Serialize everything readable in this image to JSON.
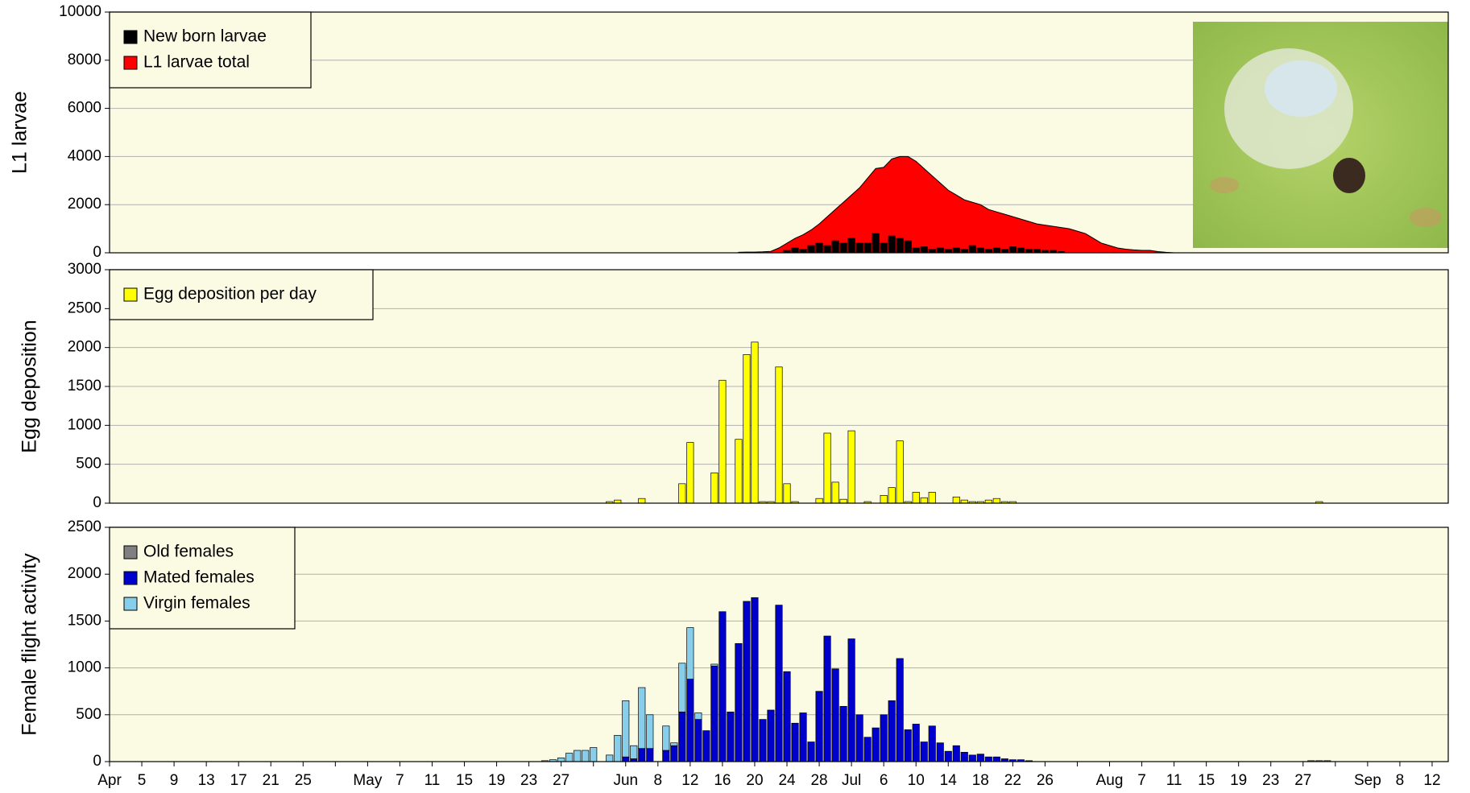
{
  "chart_data": [
    {
      "type": "area",
      "y_label": "L1 larvae",
      "xlim": [
        0,
        166
      ],
      "ylim": [
        0,
        10000
      ],
      "yticks": [
        0,
        2000,
        4000,
        6000,
        8000,
        10000
      ],
      "grid": true,
      "legend": "top-left",
      "x": [
        78,
        79,
        80,
        81,
        82,
        83,
        84,
        85,
        86,
        87,
        88,
        89,
        90,
        91,
        92,
        93,
        94,
        95,
        96,
        97,
        98,
        99,
        100,
        101,
        102,
        103,
        104,
        105,
        106,
        107,
        108,
        109,
        110,
        111,
        112,
        113,
        114,
        115,
        116,
        117,
        118,
        119,
        120,
        121,
        122,
        123,
        124,
        125,
        126,
        127,
        128,
        129,
        130,
        131,
        132
      ],
      "series": [
        {
          "name": "New born larvae",
          "color": "#000000",
          "type": "bar",
          "values": [
            0,
            0,
            0,
            0,
            0,
            0,
            100,
            200,
            150,
            300,
            400,
            300,
            500,
            400,
            600,
            400,
            400,
            800,
            400,
            700,
            600,
            500,
            200,
            250,
            150,
            200,
            150,
            200,
            150,
            300,
            200,
            150,
            200,
            150,
            250,
            200,
            150,
            150,
            100,
            100,
            50,
            0,
            0,
            0,
            0,
            0,
            0,
            0,
            0,
            0,
            0,
            0,
            0,
            0,
            0
          ]
        },
        {
          "name": "L1 larvae total",
          "color": "#ff0000",
          "type": "area",
          "values": [
            20,
            30,
            30,
            40,
            60,
            200,
            400,
            600,
            750,
            950,
            1200,
            1500,
            1800,
            2100,
            2400,
            2700,
            3100,
            3500,
            3550,
            3900,
            4000,
            4000,
            3800,
            3500,
            3200,
            2900,
            2600,
            2400,
            2200,
            2100,
            2000,
            1800,
            1700,
            1600,
            1500,
            1400,
            1300,
            1200,
            1150,
            1100,
            1050,
            1000,
            900,
            800,
            600,
            400,
            300,
            200,
            150,
            120,
            100,
            100,
            50,
            20,
            0
          ]
        }
      ]
    },
    {
      "type": "bar",
      "y_label": "Egg deposition",
      "xlim": [
        0,
        166
      ],
      "ylim": [
        0,
        3000
      ],
      "yticks": [
        0,
        500,
        1000,
        1500,
        2000,
        2500,
        3000
      ],
      "grid": true,
      "legend": "top-left",
      "x": [
        62,
        63,
        66,
        71,
        72,
        75,
        76,
        78,
        79,
        80,
        81,
        82,
        83,
        84,
        85,
        88,
        89,
        90,
        91,
        92,
        94,
        96,
        97,
        98,
        99,
        100,
        101,
        102,
        105,
        106,
        107,
        108,
        109,
        110,
        111,
        112,
        150
      ],
      "series": [
        {
          "name": "Egg deposition per day",
          "color": "#ffff00",
          "values": [
            20,
            40,
            60,
            250,
            780,
            390,
            1580,
            820,
            1910,
            2070,
            20,
            20,
            1750,
            250,
            20,
            60,
            900,
            270,
            50,
            930,
            20,
            100,
            200,
            800,
            20,
            140,
            70,
            140,
            80,
            40,
            20,
            20,
            40,
            60,
            20,
            20,
            20
          ]
        }
      ]
    },
    {
      "type": "bar",
      "stacked": true,
      "y_label": "Female flight activity",
      "xlim": [
        0,
        166
      ],
      "ylim": [
        0,
        2500
      ],
      "yticks": [
        0,
        500,
        1000,
        1500,
        2000,
        2500
      ],
      "grid": true,
      "legend": "top-left",
      "xticks": [
        {
          "value": 0,
          "label": "Apr"
        },
        {
          "value": 4,
          "label": "5"
        },
        {
          "value": 8,
          "label": "9"
        },
        {
          "value": 12,
          "label": "13"
        },
        {
          "value": 16,
          "label": "17"
        },
        {
          "value": 20,
          "label": "21"
        },
        {
          "value": 24,
          "label": "25"
        },
        {
          "value": 28,
          "label": null
        },
        {
          "value": 32,
          "label": "May"
        },
        {
          "value": 36,
          "label": "7"
        },
        {
          "value": 40,
          "label": "11"
        },
        {
          "value": 44,
          "label": "15"
        },
        {
          "value": 48,
          "label": "19"
        },
        {
          "value": 52,
          "label": "23"
        },
        {
          "value": 56,
          "label": "27"
        },
        {
          "value": 60,
          "label": null
        },
        {
          "value": 64,
          "label": "Jun"
        },
        {
          "value": 68,
          "label": "8"
        },
        {
          "value": 72,
          "label": "12"
        },
        {
          "value": 76,
          "label": "16"
        },
        {
          "value": 80,
          "label": "20"
        },
        {
          "value": 84,
          "label": "24"
        },
        {
          "value": 88,
          "label": "28"
        },
        {
          "value": 92,
          "label": "Jul"
        },
        {
          "value": 96,
          "label": "6"
        },
        {
          "value": 100,
          "label": "10"
        },
        {
          "value": 104,
          "label": "14"
        },
        {
          "value": 108,
          "label": "18"
        },
        {
          "value": 112,
          "label": "22"
        },
        {
          "value": 116,
          "label": "26"
        },
        {
          "value": 120,
          "label": null
        },
        {
          "value": 124,
          "label": "Aug"
        },
        {
          "value": 128,
          "label": "7"
        },
        {
          "value": 132,
          "label": "11"
        },
        {
          "value": 136,
          "label": "15"
        },
        {
          "value": 140,
          "label": "19"
        },
        {
          "value": 144,
          "label": "23"
        },
        {
          "value": 148,
          "label": "27"
        },
        {
          "value": 152,
          "label": null
        },
        {
          "value": 156,
          "label": "Sep"
        },
        {
          "value": 160,
          "label": "8"
        },
        {
          "value": 164,
          "label": "12"
        }
      ],
      "x": [
        54,
        55,
        56,
        57,
        58,
        59,
        60,
        62,
        63,
        64,
        65,
        66,
        67,
        69,
        70,
        71,
        72,
        73,
        74,
        75,
        76,
        77,
        78,
        79,
        80,
        81,
        82,
        83,
        84,
        85,
        86,
        87,
        88,
        89,
        90,
        91,
        92,
        93,
        94,
        95,
        96,
        97,
        98,
        99,
        100,
        101,
        102,
        103,
        104,
        105,
        106,
        107,
        108,
        109,
        110,
        111,
        112,
        113,
        114,
        149,
        150,
        151
      ],
      "series": [
        {
          "name": "Old females",
          "color": "#808080",
          "values": [
            0,
            0,
            0,
            0,
            0,
            0,
            0,
            0,
            0,
            0,
            0,
            0,
            0,
            0,
            0,
            0,
            0,
            0,
            0,
            0,
            0,
            0,
            0,
            0,
            0,
            0,
            0,
            0,
            0,
            0,
            0,
            0,
            0,
            0,
            0,
            0,
            0,
            0,
            0,
            0,
            0,
            0,
            0,
            0,
            0,
            0,
            0,
            0,
            0,
            0,
            0,
            0,
            0,
            0,
            0,
            0,
            0,
            0,
            0,
            10,
            10,
            10
          ]
        },
        {
          "name": "Mated females",
          "color": "#0000cc",
          "values": [
            0,
            0,
            0,
            0,
            0,
            0,
            0,
            0,
            0,
            50,
            30,
            140,
            140,
            120,
            170,
            530,
            880,
            450,
            330,
            1020,
            1600,
            530,
            1260,
            1710,
            1750,
            450,
            550,
            1670,
            960,
            410,
            520,
            210,
            750,
            1340,
            990,
            590,
            1310,
            500,
            260,
            360,
            500,
            650,
            1100,
            340,
            400,
            210,
            380,
            200,
            110,
            170,
            100,
            70,
            80,
            50,
            50,
            30,
            20,
            20,
            10,
            0,
            0,
            0
          ]
        },
        {
          "name": "Virgin females",
          "color": "#87ceeb",
          "values": [
            10,
            20,
            40,
            90,
            120,
            120,
            150,
            70,
            280,
            600,
            140,
            650,
            360,
            260,
            30,
            520,
            550,
            70,
            0,
            20,
            0,
            0,
            0,
            0,
            0,
            0,
            0,
            0,
            0,
            0,
            0,
            0,
            0,
            0,
            0,
            0,
            0,
            0,
            0,
            0,
            0,
            0,
            0,
            0,
            0,
            0,
            0,
            0,
            0,
            0,
            0,
            0,
            0,
            0,
            0,
            0,
            0,
            0,
            0,
            0,
            0,
            0
          ]
        }
      ]
    }
  ]
}
